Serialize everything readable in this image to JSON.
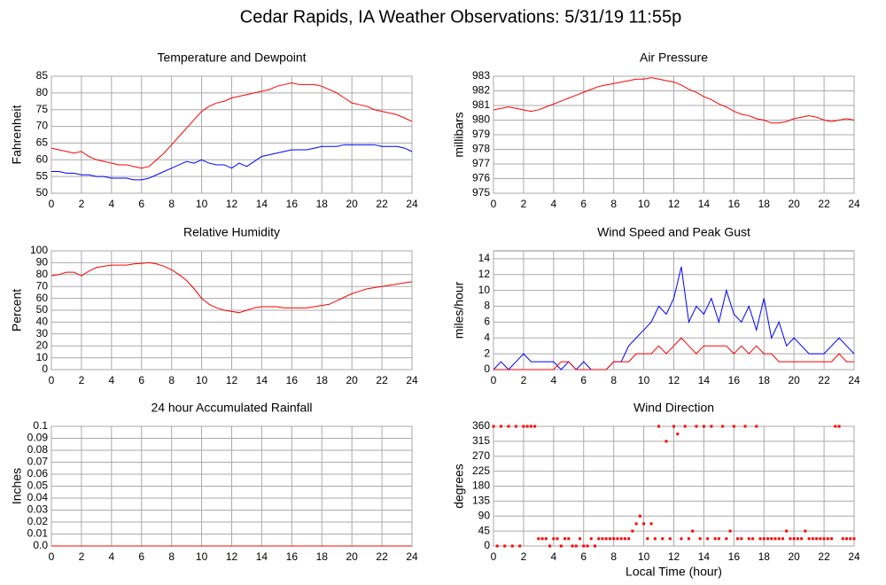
{
  "title": "Cedar Rapids, IA Weather Observations: 5/31/19 11:55p",
  "chart_data": [
    {
      "type": "line",
      "title": "Temperature and Dewpoint",
      "ylabel": "Fahrenheit",
      "x": [
        0,
        0.5,
        1,
        1.5,
        2,
        2.5,
        3,
        3.5,
        4,
        4.5,
        5,
        5.5,
        6,
        6.5,
        7,
        7.5,
        8,
        8.5,
        9,
        9.5,
        10,
        10.5,
        11,
        11.5,
        12,
        12.5,
        13,
        13.5,
        14,
        14.5,
        15,
        15.5,
        16,
        16.5,
        17,
        17.5,
        18,
        18.5,
        19,
        19.5,
        20,
        20.5,
        21,
        21.5,
        22,
        22.5,
        23,
        23.5,
        24
      ],
      "series": [
        {
          "color": "#ff0000",
          "values": [
            63.5,
            63,
            62.5,
            62,
            62.5,
            61,
            60,
            59.5,
            59,
            58.5,
            58.5,
            58,
            57.5,
            58,
            60,
            62,
            64.5,
            67,
            69.5,
            72,
            74.5,
            76,
            77,
            77.5,
            78.5,
            79,
            79.5,
            80,
            80.5,
            81,
            82,
            82.5,
            83,
            82.5,
            82.5,
            82.5,
            82,
            81,
            80,
            78.5,
            77,
            76.5,
            76,
            75,
            74.5,
            74,
            73.5,
            72.5,
            71.5
          ]
        },
        {
          "color": "#0000ff",
          "values": [
            56.5,
            56.5,
            56,
            56,
            55.5,
            55.5,
            55,
            55,
            54.5,
            54.5,
            54.5,
            54,
            54,
            54.5,
            55.5,
            56.5,
            57.5,
            58.5,
            59.5,
            59,
            60,
            59,
            58.5,
            58.5,
            57.5,
            59,
            58,
            59.5,
            61,
            61.5,
            62,
            62.5,
            63,
            63,
            63,
            63.5,
            64,
            64,
            64,
            64.5,
            64.5,
            64.5,
            64.5,
            64.5,
            64,
            64,
            64,
            63.5,
            62.5
          ]
        }
      ],
      "xlim": [
        0,
        24
      ],
      "xticks": [
        0,
        2,
        4,
        6,
        8,
        10,
        12,
        14,
        16,
        18,
        20,
        22,
        24
      ],
      "ylim": [
        50,
        85
      ],
      "yticks": [
        50,
        55,
        60,
        65,
        70,
        75,
        80,
        85
      ],
      "grid": true
    },
    {
      "type": "line",
      "title": "Air Pressure",
      "ylabel": "millibars",
      "x": [
        0,
        0.5,
        1,
        1.5,
        2,
        2.5,
        3,
        3.5,
        4,
        4.5,
        5,
        5.5,
        6,
        6.5,
        7,
        7.5,
        8,
        8.5,
        9,
        9.5,
        10,
        10.5,
        11,
        11.5,
        12,
        12.5,
        13,
        13.5,
        14,
        14.5,
        15,
        15.5,
        16,
        16.5,
        17,
        17.5,
        18,
        18.5,
        19,
        19.5,
        20,
        20.5,
        21,
        21.5,
        22,
        22.5,
        23,
        23.5,
        24
      ],
      "series": [
        {
          "color": "#ff0000",
          "values": [
            980.7,
            980.8,
            980.9,
            980.8,
            980.7,
            980.6,
            980.7,
            980.9,
            981.1,
            981.3,
            981.5,
            981.7,
            981.9,
            982.1,
            982.3,
            982.4,
            982.5,
            982.6,
            982.7,
            982.8,
            982.8,
            982.9,
            982.8,
            982.7,
            982.6,
            982.4,
            982.1,
            981.9,
            981.6,
            981.4,
            981.1,
            980.9,
            980.6,
            980.4,
            980.3,
            980.1,
            980.0,
            979.8,
            979.8,
            979.9,
            980.1,
            980.2,
            980.3,
            980.2,
            980.0,
            979.9,
            980.0,
            980.1,
            980.0
          ]
        }
      ],
      "xlim": [
        0,
        24
      ],
      "xticks": [
        0,
        2,
        4,
        6,
        8,
        10,
        12,
        14,
        16,
        18,
        20,
        22,
        24
      ],
      "ylim": [
        975,
        983
      ],
      "yticks": [
        975,
        976,
        977,
        978,
        979,
        980,
        981,
        982,
        983
      ],
      "grid": true
    },
    {
      "type": "line",
      "title": "Relative Humidity",
      "ylabel": "Percent",
      "x": [
        0,
        0.5,
        1,
        1.5,
        2,
        2.5,
        3,
        3.5,
        4,
        4.5,
        5,
        5.5,
        6,
        6.5,
        7,
        7.5,
        8,
        8.5,
        9,
        9.5,
        10,
        10.5,
        11,
        11.5,
        12,
        12.5,
        13,
        13.5,
        14,
        14.5,
        15,
        15.5,
        16,
        16.5,
        17,
        17.5,
        18,
        18.5,
        19,
        19.5,
        20,
        20.5,
        21,
        21.5,
        22,
        22.5,
        23,
        23.5,
        24
      ],
      "series": [
        {
          "color": "#ff0000",
          "values": [
            79,
            80,
            82,
            82,
            79,
            83,
            86,
            87,
            88,
            88,
            88,
            89,
            89.5,
            90,
            89,
            87,
            84,
            80,
            75,
            68,
            60,
            55,
            52,
            50,
            49,
            48,
            50,
            52,
            53,
            53,
            53,
            52,
            52,
            52,
            52,
            53,
            54,
            55,
            58,
            61,
            64,
            66,
            68,
            69,
            70,
            71,
            72,
            73,
            74
          ]
        }
      ],
      "xlim": [
        0,
        24
      ],
      "xticks": [
        0,
        2,
        4,
        6,
        8,
        10,
        12,
        14,
        16,
        18,
        20,
        22,
        24
      ],
      "ylim": [
        0,
        100
      ],
      "yticks": [
        0,
        10,
        20,
        30,
        40,
        50,
        60,
        70,
        80,
        90,
        100
      ],
      "grid": true
    },
    {
      "type": "line",
      "title": "Wind Speed and Peak Gust",
      "ylabel": "miles/hour",
      "x": [
        0,
        0.5,
        1,
        1.5,
        2,
        2.5,
        3,
        3.5,
        4,
        4.5,
        5,
        5.5,
        6,
        6.5,
        7,
        7.5,
        8,
        8.5,
        9,
        9.5,
        10,
        10.5,
        11,
        11.5,
        12,
        12.5,
        13,
        13.5,
        14,
        14.5,
        15,
        15.5,
        16,
        16.5,
        17,
        17.5,
        18,
        18.5,
        19,
        19.5,
        20,
        20.5,
        21,
        21.5,
        22,
        22.5,
        23,
        23.5,
        24
      ],
      "series": [
        {
          "color": "#0000ff",
          "values": [
            0,
            1,
            0,
            1,
            2,
            1,
            1,
            1,
            1,
            0,
            1,
            0,
            1,
            0,
            0,
            0,
            1,
            1,
            3,
            4,
            5,
            6,
            8,
            7,
            9,
            13,
            6,
            8,
            7,
            9,
            6,
            10,
            7,
            6,
            8,
            5,
            9,
            4,
            6,
            3,
            4,
            3,
            2,
            2,
            2,
            3,
            4,
            3,
            2
          ]
        },
        {
          "color": "#ff0000",
          "values": [
            0,
            0,
            0,
            0,
            0,
            0,
            0,
            0,
            0,
            1,
            1,
            0,
            0,
            0,
            0,
            0,
            1,
            1,
            1,
            2,
            2,
            2,
            3,
            2,
            3,
            4,
            3,
            2,
            3,
            3,
            3,
            3,
            2,
            3,
            2,
            3,
            2,
            2,
            1,
            1,
            1,
            1,
            1,
            1,
            1,
            1,
            2,
            1,
            1
          ]
        }
      ],
      "xlim": [
        0,
        24
      ],
      "xticks": [
        0,
        2,
        4,
        6,
        8,
        10,
        12,
        14,
        16,
        18,
        20,
        22,
        24
      ],
      "ylim": [
        0,
        15
      ],
      "yticks": [
        0,
        2,
        4,
        6,
        8,
        10,
        12,
        14
      ],
      "grid": true
    },
    {
      "type": "line",
      "title": "24 hour Accumulated Rainfall",
      "ylabel": "Inches",
      "x": [
        0,
        24
      ],
      "series": [
        {
          "color": "#ff0000",
          "values": [
            0,
            0
          ]
        }
      ],
      "xlim": [
        0,
        24
      ],
      "xticks": [
        0,
        2,
        4,
        6,
        8,
        10,
        12,
        14,
        16,
        18,
        20,
        22,
        24
      ],
      "ylim": [
        0,
        0.1
      ],
      "yticks": [
        {
          "value": 0,
          "label": "0.0"
        },
        0.01,
        0.02,
        0.03,
        0.04,
        0.05,
        0.06,
        0.07,
        0.08,
        0.09,
        0.1
      ],
      "grid": true
    },
    {
      "type": "scatter",
      "title": "Wind Direction",
      "ylabel": "degrees",
      "xlabel": "Local Time (hour)",
      "x": [
        0,
        0.25,
        0.5,
        0.75,
        1,
        1.25,
        1.5,
        1.75,
        2,
        2.25,
        2.5,
        2.75,
        3,
        3.25,
        3.5,
        3.75,
        4,
        4.25,
        4.5,
        4.75,
        5,
        5.25,
        5.5,
        5.75,
        6,
        6.25,
        6.5,
        6.75,
        7,
        7.25,
        7.5,
        7.75,
        8,
        8.25,
        8.5,
        8.75,
        9,
        9.25,
        9.5,
        9.75,
        10,
        10.25,
        10.5,
        10.75,
        11,
        11.25,
        11.5,
        11.75,
        12,
        12.25,
        12.5,
        12.75,
        13,
        13.25,
        13.5,
        13.75,
        14,
        14.25,
        14.5,
        14.75,
        15,
        15.25,
        15.5,
        15.75,
        16,
        16.25,
        16.5,
        16.75,
        17,
        17.25,
        17.5,
        17.75,
        18,
        18.25,
        18.5,
        18.75,
        19,
        19.25,
        19.5,
        19.75,
        20,
        20.25,
        20.5,
        20.75,
        21,
        21.25,
        21.5,
        21.75,
        22,
        22.25,
        22.5,
        22.75,
        23,
        23.25,
        23.5,
        23.75,
        24
      ],
      "series": [
        {
          "color": "#ff0000",
          "values": [
            360,
            0,
            360,
            0,
            360,
            0,
            360,
            0,
            360,
            360,
            360,
            360,
            22,
            22,
            22,
            0,
            22,
            22,
            0,
            22,
            22,
            0,
            0,
            22,
            0,
            0,
            22,
            0,
            22,
            22,
            22,
            22,
            22,
            22,
            22,
            22,
            22,
            45,
            67,
            90,
            67,
            22,
            67,
            22,
            360,
            22,
            315,
            22,
            360,
            337,
            22,
            360,
            22,
            45,
            360,
            22,
            360,
            22,
            360,
            22,
            22,
            360,
            22,
            45,
            360,
            22,
            22,
            360,
            22,
            22,
            360,
            22,
            22,
            22,
            22,
            22,
            22,
            22,
            45,
            22,
            22,
            22,
            22,
            45,
            22,
            22,
            22,
            22,
            22,
            22,
            22,
            360,
            360,
            22,
            22,
            22,
            22
          ]
        }
      ],
      "xlim": [
        0,
        24
      ],
      "xticks": [
        0,
        2,
        4,
        6,
        8,
        10,
        12,
        14,
        16,
        18,
        20,
        22,
        24
      ],
      "ylim": [
        0,
        360
      ],
      "yticks": [
        0,
        45,
        90,
        135,
        180,
        225,
        270,
        315,
        360
      ],
      "grid": true
    }
  ]
}
